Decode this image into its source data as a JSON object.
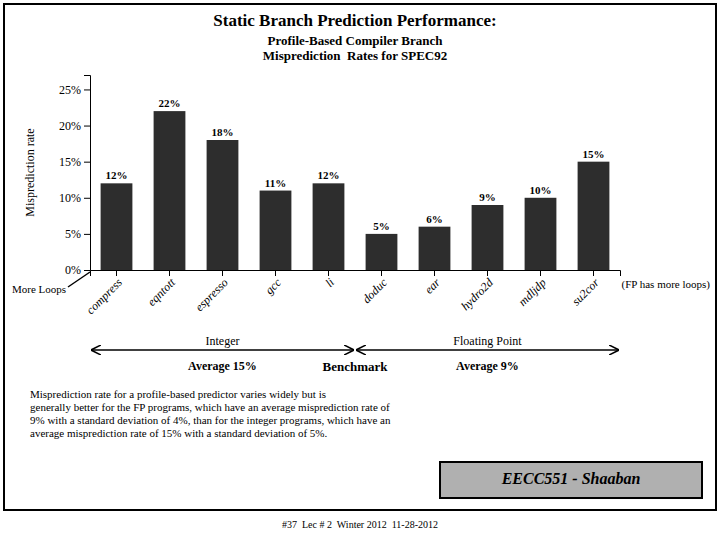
{
  "chart_data": {
    "type": "bar",
    "title": "Static Branch Prediction Performance:",
    "subtitle": "Profile-Based Compiler Branch\nMisprediction  Rates for SPEC92",
    "ylabel": "Misprediction rate",
    "xlabel": "Benchmark",
    "categories": [
      "compress",
      "eqntott",
      "espresso",
      "gcc",
      "li",
      "doduc",
      "ear",
      "hydro2d",
      "mdljdp",
      "su2cor"
    ],
    "values": [
      12,
      22,
      18,
      11,
      12,
      5,
      6,
      9,
      10,
      15
    ],
    "value_labels": [
      "12%",
      "22%",
      "18%",
      "11%",
      "12%",
      "5%",
      "6%",
      "9%",
      "10%",
      "15%"
    ],
    "data_labels": true,
    "color": "#2d2d2d",
    "ylim": [
      0,
      27
    ],
    "yticks": [
      {
        "value": 0,
        "label": "0%"
      },
      {
        "value": 5,
        "label": "5%"
      },
      {
        "value": 10,
        "label": "10%"
      },
      {
        "value": 15,
        "label": "15%"
      },
      {
        "value": 20,
        "label": "20%"
      },
      {
        "value": 25,
        "label": "25%"
      }
    ],
    "groups": [
      {
        "name": "Integer",
        "label": "Average 15%",
        "categories": [
          "compress",
          "eqntott",
          "espresso",
          "gcc",
          "li"
        ]
      },
      {
        "name": "Floating Point",
        "label": "Average 9%",
        "categories": [
          "doduc",
          "ear",
          "hydro2d",
          "mdljdp",
          "su2cor"
        ]
      }
    ],
    "annotations": [
      "More Loops",
      "(FP has more loops)",
      "Misprediction rate for a profile-based predictor varies widely but is\ngenerally better for the FP programs, which have an average misprediction rate of\n9% with a standard deviation of 4%, than for the integer programs, which have an\naverage misprediction rate of 15% with a standard deviation of 5%.",
      "EECC551 - Shaaban",
      "#37  Lec # 2  Winter 2012  11-28-2012"
    ]
  }
}
